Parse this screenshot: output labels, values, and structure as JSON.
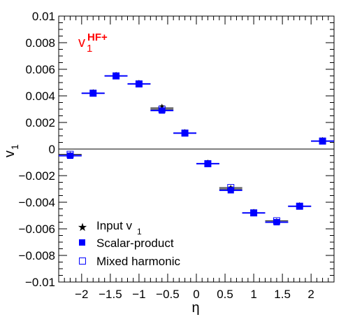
{
  "chart_data": {
    "type": "scatter",
    "title": "",
    "annotation": {
      "main": "v",
      "sub": "1",
      "sup": "HF+",
      "color": "#ff0000"
    },
    "xlabel": "η",
    "ylabel": "v",
    "ylabel_sub": "1",
    "xlim": [
      -2.4,
      2.4
    ],
    "ylim": [
      -0.01,
      0.01
    ],
    "xticks": [
      -2,
      -1.5,
      -1,
      -0.5,
      0,
      0.5,
      1,
      1.5,
      2
    ],
    "xtick_labels": [
      "−2",
      "−1.5",
      "−1",
      "−0.5",
      "0",
      "0.5",
      "1",
      "1.5",
      "2"
    ],
    "yticks": [
      -0.01,
      -0.008,
      -0.006,
      -0.004,
      -0.002,
      0,
      0.002,
      0.004,
      0.006,
      0.008,
      0.01
    ],
    "ytick_labels": [
      "−0.01",
      "−0.008",
      "−0.006",
      "−0.004",
      "−0.002",
      "0",
      "0.002",
      "0.004",
      "0.006",
      "0.008",
      "0.01"
    ],
    "zero_line": true,
    "grid": false,
    "legend_position": "bottom-left",
    "x": [
      -2.2,
      -1.8,
      -1.4,
      -1.0,
      -0.6,
      -0.2,
      0.2,
      0.6,
      1.0,
      1.4,
      1.8,
      2.2
    ],
    "x_halfwidth": 0.2,
    "series": [
      {
        "name": "Input v",
        "name_sub": "1",
        "marker": "star",
        "color": "#000000",
        "values": [
          -0.0005,
          0.0042,
          0.0055,
          0.0049,
          0.0031,
          0.0012,
          -0.0011,
          -0.003,
          -0.0048,
          -0.0055,
          -0.0043,
          0.0006
        ]
      },
      {
        "name": "Scalar-product",
        "marker": "filled-square",
        "color": "#0000ff",
        "values": [
          -0.0005,
          0.0042,
          0.0055,
          0.0049,
          0.0029,
          0.0012,
          -0.0011,
          -0.0031,
          -0.0048,
          -0.0055,
          -0.0043,
          0.0006
        ]
      },
      {
        "name": "Mixed harmonic",
        "marker": "open-square",
        "color": "#0000ff",
        "values": [
          -0.0004,
          0.0042,
          0.0055,
          0.0049,
          0.003,
          0.0012,
          -0.0011,
          -0.0029,
          -0.0048,
          -0.0054,
          -0.0043,
          0.0006
        ]
      }
    ]
  }
}
